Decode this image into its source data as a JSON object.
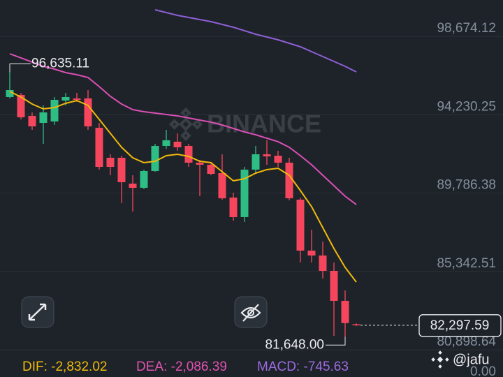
{
  "chart_data": {
    "type": "candlestick",
    "open": [
      95231,
      95350,
      94163,
      93767,
      93846,
      95033,
      95152,
      95152,
      93490,
      91788,
      91788,
      90324,
      90087,
      91037,
      92461,
      92699,
      92461,
      91511,
      91393,
      90918,
      89533,
      88425,
      91116,
      91986,
      91907,
      91511,
      89414,
      86526,
      86249,
      85378,
      83677,
      82350
    ],
    "close": [
      95627,
      94084,
      93569,
      94360,
      95073,
      95231,
      95073,
      93569,
      91274,
      91274,
      90403,
      90087,
      91037,
      92461,
      92778,
      92382,
      91511,
      91393,
      90878,
      89493,
      88425,
      91116,
      91986,
      91868,
      91511,
      89493,
      86526,
      86249,
      85378,
      83677,
      82420,
      82297.59
    ],
    "high": [
      96635.11,
      95468,
      94360,
      94756,
      95231,
      95468,
      95468,
      95627,
      93767,
      91986,
      91907,
      90799,
      91116,
      92580,
      93371,
      93173,
      92580,
      91670,
      91511,
      91986,
      89810,
      91274,
      92461,
      92778,
      92184,
      91788,
      89533,
      87713,
      87040,
      85853,
      84270,
      82400
    ],
    "low": [
      95152,
      93965,
      93371,
      92580,
      93648,
      94756,
      94954,
      93371,
      91116,
      90799,
      89216,
      88742,
      90008,
      90997,
      92303,
      92184,
      91274,
      89612,
      90799,
      89414,
      88227,
      88148,
      90878,
      91393,
      91274,
      89375,
      85853,
      85853,
      84943,
      81700,
      81648,
      82250
    ],
    "up_color": "#2ebd85",
    "down_color": "#f6465d",
    "lines": [
      {
        "color": "#f0b90b",
        "values": [
          95548,
          95231,
          94835,
          94558,
          94637,
          94875,
          95033,
          94756,
          93965,
          93173,
          92382,
          91788,
          91511,
          91591,
          91907,
          91986,
          91868,
          91591,
          91511,
          90997,
          90483,
          90601,
          90918,
          91116,
          91195,
          90799,
          89929,
          89019,
          87831,
          86644,
          85576,
          84745
        ]
      },
      {
        "color": "#d94fb5",
        "values": [
          97684,
          97447,
          97210,
          96972,
          96814,
          96616,
          96497,
          96339,
          95825,
          95271,
          94835,
          94519,
          94400,
          94321,
          94242,
          94163,
          94044,
          93925,
          93807,
          93648,
          93450,
          93253,
          93094,
          92896,
          92699,
          92382,
          91907,
          91393,
          90799,
          90206,
          89612,
          89137
        ]
      },
      {
        "color": "#8e5fd6",
        "values": [
          null,
          null,
          null,
          null,
          null,
          null,
          null,
          null,
          null,
          null,
          null,
          null,
          null,
          100177,
          100019,
          99861,
          99742,
          99623,
          99505,
          99346,
          99188,
          98990,
          98792,
          98634,
          98476,
          98278,
          98080,
          97803,
          97526,
          97249,
          96972,
          96656
        ]
      }
    ],
    "ylim": [
      80510,
      100296
    ],
    "yticks": [
      {
        "value": 98674.12,
        "label": "98,674.12"
      },
      {
        "value": 94230.25,
        "label": "94,230.25"
      },
      {
        "value": 89786.38,
        "label": "89,786.38"
      },
      {
        "value": 85342.51,
        "label": "85,342.51"
      },
      {
        "value": 80898.64,
        "label": "80,898.64"
      }
    ],
    "grid": true,
    "high_label": "96,635.11",
    "low_label": "81,648.00",
    "last_price": {
      "value": 82297.59,
      "label": "82,297.59"
    },
    "sub_axis_label": "0.00",
    "watermark": "BINANCE",
    "user": "@jafu",
    "indicators": [
      {
        "text": "DIF: -2,832.02",
        "color": "#f0b90b"
      },
      {
        "text": "DEA: -2,086.39",
        "color": "#e052b0"
      },
      {
        "text": "MACD: -745.63",
        "color": "#9c6ade"
      }
    ]
  }
}
